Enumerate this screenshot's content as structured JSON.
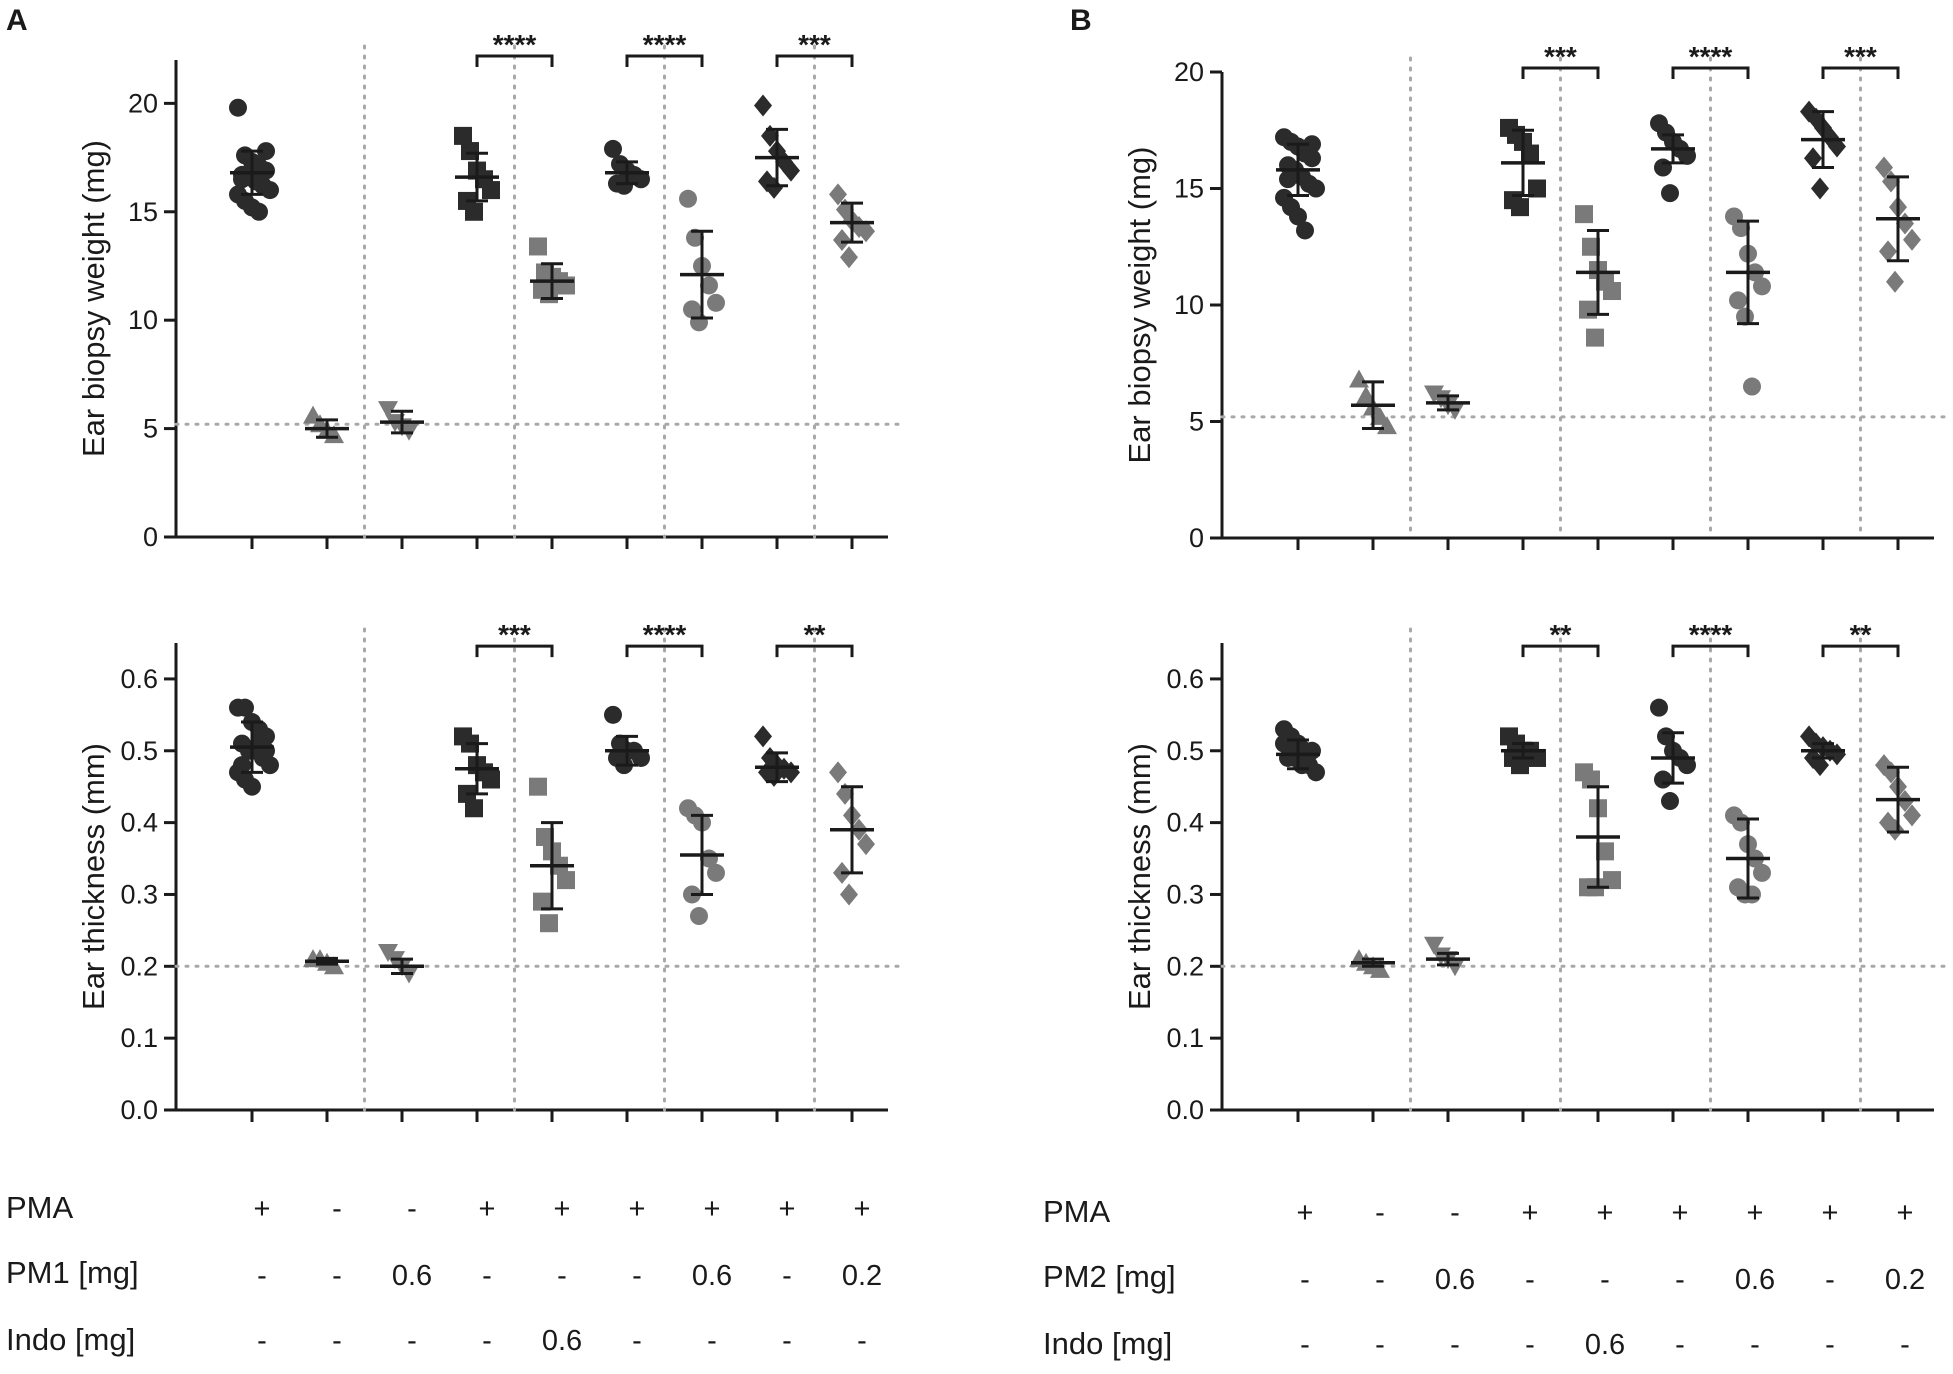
{
  "panels": {
    "A": {
      "letter": "A",
      "agent_label": "PM1 [mg]"
    },
    "B": {
      "letter": "B",
      "agent_label": "PM2 [mg]"
    }
  },
  "rows": {
    "pma": {
      "label": "PMA",
      "values": [
        "+",
        "-",
        "-",
        "+",
        "+",
        "+",
        "+",
        "+",
        "+"
      ]
    },
    "agent": {
      "values": [
        "-",
        "-",
        "0.6",
        "-",
        "-",
        "-",
        "0.6",
        "-",
        "0.2"
      ]
    },
    "indo": {
      "label": "Indo [mg]",
      "values": [
        "-",
        "-",
        "-",
        "-",
        "0.6",
        "-",
        "-",
        "-",
        "-"
      ]
    }
  },
  "colors": {
    "dark": "#2b2b2b",
    "gray": "#7a7a7a",
    "axis": "#1a1a1a",
    "dotted": "#a8a8a8"
  },
  "chart_data": [
    {
      "id": "A-weight",
      "type": "scatter",
      "title": "",
      "ylabel": "Ear biopsy weight (mg)",
      "ylim": [
        0,
        22
      ],
      "yticks": [
        0,
        5,
        10,
        15,
        20
      ],
      "ytick_labels": [
        "0",
        "5",
        "10",
        "15",
        "20"
      ],
      "baseline": 5.2,
      "separators_after_group": [
        1,
        3,
        5,
        7
      ],
      "groups": [
        {
          "shape": "circle",
          "tone": "dark",
          "mean": 16.8,
          "sd": 1.0,
          "points": [
            19.8,
            17.6,
            17.3,
            17.1,
            16.9,
            16.7,
            16.6,
            16.4,
            16.2,
            16.0,
            15.8,
            15.5,
            15.2,
            15.0,
            17.8,
            16.5
          ]
        },
        {
          "shape": "triangle-up",
          "tone": "gray",
          "mean": 5.0,
          "sd": 0.4,
          "points": [
            5.6,
            5.2,
            4.9,
            4.7
          ]
        },
        {
          "shape": "triangle-down",
          "tone": "gray",
          "mean": 5.3,
          "sd": 0.5,
          "points": [
            5.9,
            5.3,
            5.1,
            4.9
          ]
        },
        {
          "shape": "square",
          "tone": "dark",
          "mean": 16.6,
          "sd": 1.1,
          "points": [
            18.5,
            17.8,
            16.9,
            16.5,
            16.0,
            15.5,
            15.0
          ]
        },
        {
          "shape": "square",
          "tone": "gray",
          "mean": 11.8,
          "sd": 0.8,
          "points": [
            13.4,
            12.2,
            12.0,
            11.8,
            11.6,
            11.4,
            11.2
          ]
        },
        {
          "shape": "circle",
          "tone": "dark",
          "mean": 16.8,
          "sd": 0.5,
          "points": [
            17.9,
            17.2,
            16.9,
            16.7,
            16.5,
            16.3,
            16.2
          ]
        },
        {
          "shape": "circle",
          "tone": "gray",
          "mean": 12.1,
          "sd": 2.0,
          "points": [
            15.6,
            13.8,
            12.5,
            11.6,
            10.8,
            10.5,
            9.9
          ]
        },
        {
          "shape": "diamond",
          "tone": "dark",
          "mean": 17.5,
          "sd": 1.3,
          "points": [
            19.9,
            18.5,
            17.8,
            17.3,
            16.9,
            16.4,
            16.1
          ]
        },
        {
          "shape": "diamond",
          "tone": "gray",
          "mean": 14.5,
          "sd": 0.9,
          "points": [
            15.8,
            15.1,
            14.6,
            14.3,
            14.1,
            13.7,
            12.9
          ]
        }
      ],
      "comparisons": [
        {
          "from": 3,
          "to": 4,
          "label": "****",
          "level": 22.0
        },
        {
          "from": 5,
          "to": 6,
          "label": "****",
          "level": 22.0
        },
        {
          "from": 7,
          "to": 8,
          "label": "***",
          "level": 22.0
        }
      ]
    },
    {
      "id": "A-thickness",
      "type": "scatter",
      "title": "",
      "ylabel": "Ear thickness (mm)",
      "ylim": [
        0,
        0.65
      ],
      "yticks": [
        0,
        0.1,
        0.2,
        0.3,
        0.4,
        0.5,
        0.6
      ],
      "ytick_labels": [
        "0.0",
        "0.1",
        "0.2",
        "0.3",
        "0.4",
        "0.5",
        "0.6"
      ],
      "baseline": 0.2,
      "separators_after_group": [
        1,
        3,
        5,
        7
      ],
      "groups": [
        {
          "shape": "circle",
          "tone": "dark",
          "mean": 0.505,
          "sd": 0.035,
          "points": [
            0.56,
            0.56,
            0.54,
            0.53,
            0.52,
            0.51,
            0.5,
            0.5,
            0.49,
            0.48,
            0.47,
            0.46,
            0.45,
            0.51,
            0.5,
            0.48
          ]
        },
        {
          "shape": "triangle-up",
          "tone": "gray",
          "mean": 0.207,
          "sd": 0.004,
          "points": [
            0.21,
            0.21,
            0.205,
            0.2
          ]
        },
        {
          "shape": "triangle-down",
          "tone": "gray",
          "mean": 0.2,
          "sd": 0.01,
          "points": [
            0.22,
            0.21,
            0.2,
            0.19
          ]
        },
        {
          "shape": "square",
          "tone": "dark",
          "mean": 0.475,
          "sd": 0.035,
          "points": [
            0.52,
            0.51,
            0.48,
            0.47,
            0.46,
            0.44,
            0.42
          ]
        },
        {
          "shape": "square",
          "tone": "gray",
          "mean": 0.34,
          "sd": 0.06,
          "points": [
            0.45,
            0.38,
            0.36,
            0.34,
            0.32,
            0.29,
            0.26
          ]
        },
        {
          "shape": "circle",
          "tone": "dark",
          "mean": 0.5,
          "sd": 0.02,
          "points": [
            0.55,
            0.51,
            0.5,
            0.5,
            0.49,
            0.49,
            0.48
          ]
        },
        {
          "shape": "circle",
          "tone": "gray",
          "mean": 0.355,
          "sd": 0.055,
          "points": [
            0.42,
            0.41,
            0.4,
            0.35,
            0.33,
            0.3,
            0.27
          ]
        },
        {
          "shape": "diamond",
          "tone": "dark",
          "mean": 0.477,
          "sd": 0.02,
          "points": [
            0.52,
            0.49,
            0.48,
            0.475,
            0.47,
            0.47,
            0.465
          ]
        },
        {
          "shape": "diamond",
          "tone": "gray",
          "mean": 0.39,
          "sd": 0.06,
          "points": [
            0.47,
            0.44,
            0.41,
            0.39,
            0.37,
            0.33,
            0.3
          ]
        }
      ],
      "comparisons": [
        {
          "from": 3,
          "to": 4,
          "label": "***",
          "level": 0.64
        },
        {
          "from": 5,
          "to": 6,
          "label": "****",
          "level": 0.64
        },
        {
          "from": 7,
          "to": 8,
          "label": "**",
          "level": 0.64
        }
      ]
    },
    {
      "id": "B-weight",
      "type": "scatter",
      "title": "",
      "ylabel": "Ear biopsy weight (mg)",
      "ylim": [
        0,
        20
      ],
      "yticks": [
        0,
        5,
        10,
        15,
        20
      ],
      "ytick_labels": [
        "0",
        "5",
        "10",
        "15",
        "20"
      ],
      "baseline": 5.2,
      "separators_after_group": [
        1,
        3,
        5,
        7
      ],
      "groups": [
        {
          "shape": "circle",
          "tone": "dark",
          "mean": 15.8,
          "sd": 1.1,
          "points": [
            17.2,
            17.0,
            16.8,
            16.5,
            16.3,
            16.0,
            15.8,
            15.5,
            15.2,
            15.0,
            14.6,
            14.2,
            13.8,
            13.2,
            16.9,
            15.4
          ]
        },
        {
          "shape": "triangle-up",
          "tone": "gray",
          "mean": 5.7,
          "sd": 1.0,
          "points": [
            6.8,
            6.1,
            5.6,
            5.2,
            4.8
          ]
        },
        {
          "shape": "triangle-down",
          "tone": "gray",
          "mean": 5.8,
          "sd": 0.3,
          "points": [
            6.2,
            6.0,
            5.7,
            5.5
          ]
        },
        {
          "shape": "square",
          "tone": "dark",
          "mean": 16.1,
          "sd": 1.4,
          "points": [
            17.6,
            17.3,
            17.0,
            16.5,
            15.0,
            14.5,
            14.2
          ]
        },
        {
          "shape": "square",
          "tone": "gray",
          "mean": 11.4,
          "sd": 1.8,
          "points": [
            13.9,
            12.5,
            11.5,
            11.0,
            10.6,
            9.8,
            8.6
          ]
        },
        {
          "shape": "circle",
          "tone": "dark",
          "mean": 16.7,
          "sd": 0.6,
          "points": [
            17.8,
            17.4,
            17.0,
            16.7,
            16.4,
            15.9,
            14.8
          ]
        },
        {
          "shape": "circle",
          "tone": "gray",
          "mean": 11.4,
          "sd": 2.2,
          "points": [
            13.8,
            13.3,
            12.2,
            11.4,
            10.8,
            10.2,
            9.5,
            6.5
          ]
        },
        {
          "shape": "diamond",
          "tone": "dark",
          "mean": 17.1,
          "sd": 1.2,
          "points": [
            18.3,
            18.0,
            17.6,
            17.2,
            16.8,
            16.3,
            15.0
          ]
        },
        {
          "shape": "diamond",
          "tone": "gray",
          "mean": 13.7,
          "sd": 1.8,
          "points": [
            15.9,
            15.3,
            14.2,
            13.5,
            12.8,
            12.3,
            11.0
          ]
        }
      ],
      "comparisons": [
        {
          "from": 3,
          "to": 4,
          "label": "***",
          "level": 20.0
        },
        {
          "from": 5,
          "to": 6,
          "label": "****",
          "level": 20.0
        },
        {
          "from": 7,
          "to": 8,
          "label": "***",
          "level": 20.0
        }
      ]
    },
    {
      "id": "B-thickness",
      "type": "scatter",
      "title": "",
      "ylabel": "Ear thickness (mm)",
      "ylim": [
        0,
        0.65
      ],
      "yticks": [
        0,
        0.1,
        0.2,
        0.3,
        0.4,
        0.5,
        0.6
      ],
      "ytick_labels": [
        "0.0",
        "0.1",
        "0.2",
        "0.3",
        "0.4",
        "0.5",
        "0.6"
      ],
      "baseline": 0.2,
      "separators_after_group": [
        1,
        3,
        5,
        7
      ],
      "groups": [
        {
          "shape": "circle",
          "tone": "dark",
          "mean": 0.495,
          "sd": 0.02,
          "points": [
            0.53,
            0.52,
            0.51,
            0.5,
            0.5,
            0.49,
            0.49,
            0.48,
            0.48,
            0.47,
            0.51,
            0.5,
            0.49,
            0.5
          ]
        },
        {
          "shape": "triangle-up",
          "tone": "gray",
          "mean": 0.205,
          "sd": 0.005,
          "points": [
            0.21,
            0.205,
            0.2,
            0.195
          ]
        },
        {
          "shape": "triangle-down",
          "tone": "gray",
          "mean": 0.21,
          "sd": 0.008,
          "points": [
            0.23,
            0.215,
            0.21,
            0.2
          ]
        },
        {
          "shape": "square",
          "tone": "dark",
          "mean": 0.5,
          "sd": 0.01,
          "points": [
            0.52,
            0.51,
            0.5,
            0.5,
            0.49,
            0.49,
            0.48
          ]
        },
        {
          "shape": "square",
          "tone": "gray",
          "mean": 0.38,
          "sd": 0.07,
          "points": [
            0.47,
            0.46,
            0.42,
            0.36,
            0.32,
            0.31,
            0.31
          ]
        },
        {
          "shape": "circle",
          "tone": "dark",
          "mean": 0.49,
          "sd": 0.035,
          "points": [
            0.56,
            0.52,
            0.5,
            0.49,
            0.48,
            0.46,
            0.43
          ]
        },
        {
          "shape": "circle",
          "tone": "gray",
          "mean": 0.35,
          "sd": 0.055,
          "points": [
            0.41,
            0.4,
            0.37,
            0.35,
            0.33,
            0.31,
            0.3,
            0.3
          ]
        },
        {
          "shape": "diamond",
          "tone": "dark",
          "mean": 0.5,
          "sd": 0.01,
          "points": [
            0.52,
            0.51,
            0.505,
            0.5,
            0.495,
            0.49,
            0.48
          ]
        },
        {
          "shape": "diamond",
          "tone": "gray",
          "mean": 0.432,
          "sd": 0.045,
          "points": [
            0.48,
            0.47,
            0.45,
            0.43,
            0.41,
            0.4,
            0.39
          ]
        }
      ],
      "comparisons": [
        {
          "from": 3,
          "to": 4,
          "label": "**",
          "level": 0.64
        },
        {
          "from": 5,
          "to": 6,
          "label": "****",
          "level": 0.64
        },
        {
          "from": 7,
          "to": 8,
          "label": "**",
          "level": 0.64
        }
      ]
    }
  ]
}
